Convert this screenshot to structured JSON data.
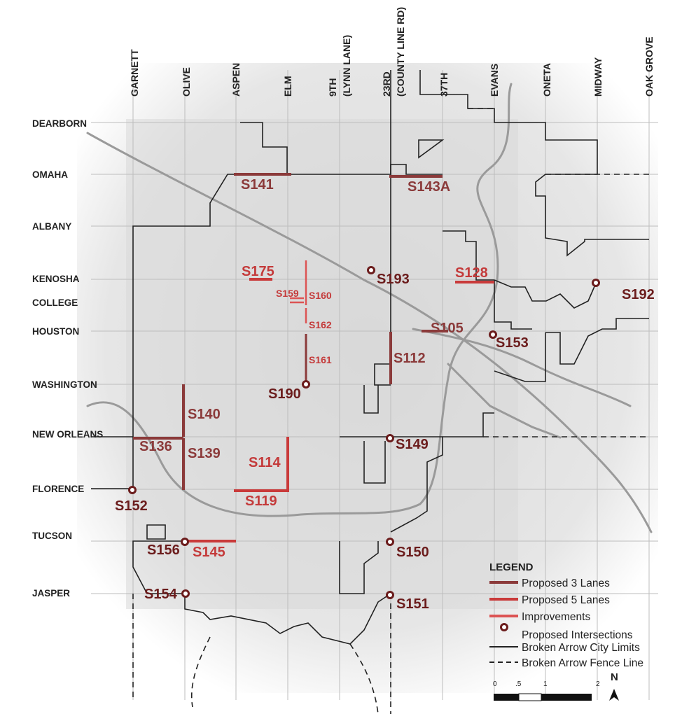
{
  "map": {
    "column_roads": [
      "GARNETT",
      "OLIVE",
      "ASPEN",
      "ELM",
      "9TH",
      "(LYNN LANE)",
      "23RD",
      "(COUNTY LINE RD)",
      "37TH",
      "EVANS",
      "ONETA",
      "MIDWAY",
      "OAK GROVE"
    ],
    "row_roads": [
      "DEARBORN",
      "OMAHA",
      "ALBANY",
      "KENOSHA",
      "COLLEGE",
      "HOUSTON",
      "WASHINGTON",
      "NEW ORLEANS",
      "FLORENCE",
      "TUCSON",
      "JASPER"
    ],
    "projects": [
      "S141",
      "S143A",
      "S175",
      "S159",
      "S160",
      "S162",
      "S161",
      "S128",
      "S105",
      "S112",
      "S140",
      "S136",
      "S139",
      "S114",
      "S119",
      "S145"
    ],
    "intersections": [
      "S193",
      "S192",
      "S153",
      "S190",
      "S149",
      "S152",
      "S156",
      "S150",
      "S154",
      "S151"
    ],
    "colors": {
      "proposed_3_lanes": "#8b3a3a",
      "proposed_5_lanes": "#c93a3a",
      "improvements": "#dc5454",
      "intersection": "#6b1c1c",
      "label_dark": "#6b1c1c",
      "label_red": "#c43a3a"
    }
  },
  "legend": {
    "title": "LEGEND",
    "items": [
      "Proposed 3 Lanes",
      "Proposed 5 Lanes",
      "Improvements",
      "Proposed Intersections",
      "Broken Arrow City Limits",
      "Broken Arrow Fence Line"
    ]
  },
  "scale": {
    "ticks": [
      "0",
      ".5",
      "1",
      "2"
    ],
    "north": "N"
  }
}
